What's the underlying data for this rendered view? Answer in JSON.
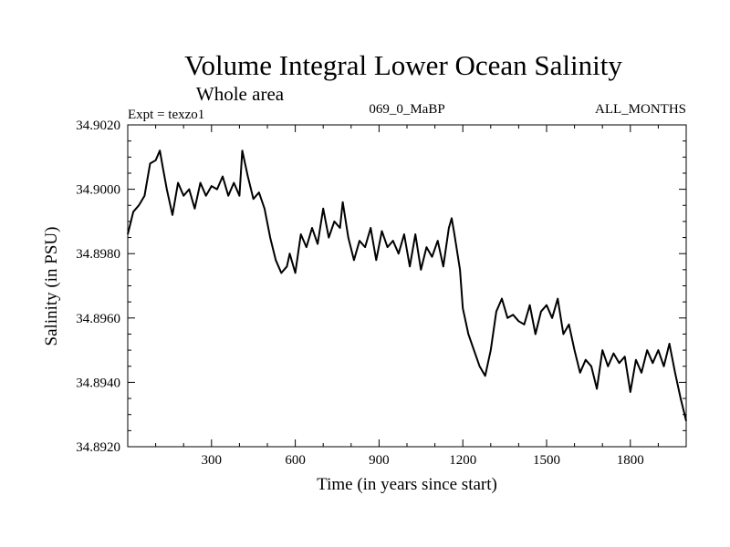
{
  "colors": {
    "background": "#ffffff",
    "line": "#000000",
    "axis": "#000000"
  },
  "chart_data": {
    "type": "line",
    "title": "Volume Integral Lower Ocean Salinity",
    "subtitle": "Whole area",
    "annotations": {
      "experiment": "Expt = texzo1",
      "run": "069_0_MaBP",
      "months": "ALL_MONTHS"
    },
    "xlabel": "Time (in years since start)",
    "ylabel": "Salinity (in PSU)",
    "xlim": [
      0,
      2000
    ],
    "ylim": [
      34.892,
      34.902
    ],
    "xticks": [
      300,
      600,
      900,
      1200,
      1500,
      1800
    ],
    "xtick_labels": [
      "300",
      "600",
      "900",
      "1200",
      "1500",
      "1800"
    ],
    "yticks": [
      34.892,
      34.894,
      34.896,
      34.898,
      34.9,
      34.902
    ],
    "ytick_labels": [
      "34.8920",
      "34.8940",
      "34.8960",
      "34.8980",
      "34.9000",
      "34.9020"
    ],
    "grid": false,
    "series": [
      {
        "name": "Salinity",
        "x": [
          0,
          20,
          40,
          60,
          80,
          100,
          115,
          125,
          140,
          160,
          180,
          200,
          220,
          240,
          260,
          280,
          300,
          320,
          340,
          360,
          380,
          400,
          410,
          430,
          450,
          470,
          490,
          510,
          530,
          550,
          570,
          580,
          600,
          620,
          640,
          660,
          680,
          700,
          720,
          740,
          760,
          770,
          790,
          810,
          830,
          850,
          870,
          890,
          910,
          930,
          950,
          970,
          990,
          1010,
          1030,
          1050,
          1070,
          1090,
          1110,
          1130,
          1150,
          1160,
          1170,
          1190,
          1200,
          1220,
          1240,
          1260,
          1280,
          1300,
          1320,
          1340,
          1360,
          1380,
          1400,
          1420,
          1440,
          1460,
          1480,
          1500,
          1520,
          1540,
          1560,
          1580,
          1600,
          1620,
          1640,
          1660,
          1680,
          1700,
          1720,
          1740,
          1760,
          1780,
          1800,
          1820,
          1840,
          1860,
          1880,
          1900,
          1920,
          1940,
          1960,
          1980,
          2000
        ],
        "values": [
          34.8986,
          34.8993,
          34.8995,
          34.8998,
          34.9008,
          34.9009,
          34.9012,
          34.9007,
          34.9,
          34.8992,
          34.9002,
          34.8998,
          34.9,
          34.8994,
          34.9002,
          34.8998,
          34.9001,
          34.9,
          34.9004,
          34.8998,
          34.9002,
          34.8998,
          34.9012,
          34.9004,
          34.8997,
          34.8999,
          34.8994,
          34.8985,
          34.8978,
          34.8974,
          34.8976,
          34.898,
          34.8974,
          34.8986,
          34.8982,
          34.8988,
          34.8983,
          34.8994,
          34.8985,
          34.899,
          34.8988,
          34.8996,
          34.8985,
          34.8978,
          34.8984,
          34.8982,
          34.8988,
          34.8978,
          34.8987,
          34.8982,
          34.8984,
          34.898,
          34.8986,
          34.8976,
          34.8986,
          34.8975,
          34.8982,
          34.8979,
          34.8984,
          34.8976,
          34.8988,
          34.8991,
          34.8986,
          34.8975,
          34.8963,
          34.8955,
          34.895,
          34.8945,
          34.8942,
          34.895,
          34.8962,
          34.8966,
          34.896,
          34.8961,
          34.8959,
          34.8958,
          34.8964,
          34.8955,
          34.8962,
          34.8964,
          34.896,
          34.8966,
          34.8955,
          34.8958,
          34.895,
          34.8943,
          34.8947,
          34.8945,
          34.8938,
          34.895,
          34.8945,
          34.8949,
          34.8946,
          34.8948,
          34.8937,
          34.8947,
          34.8943,
          34.895,
          34.8946,
          34.895,
          34.8945,
          34.8952,
          34.8943,
          34.8935,
          34.8928
        ]
      }
    ]
  }
}
